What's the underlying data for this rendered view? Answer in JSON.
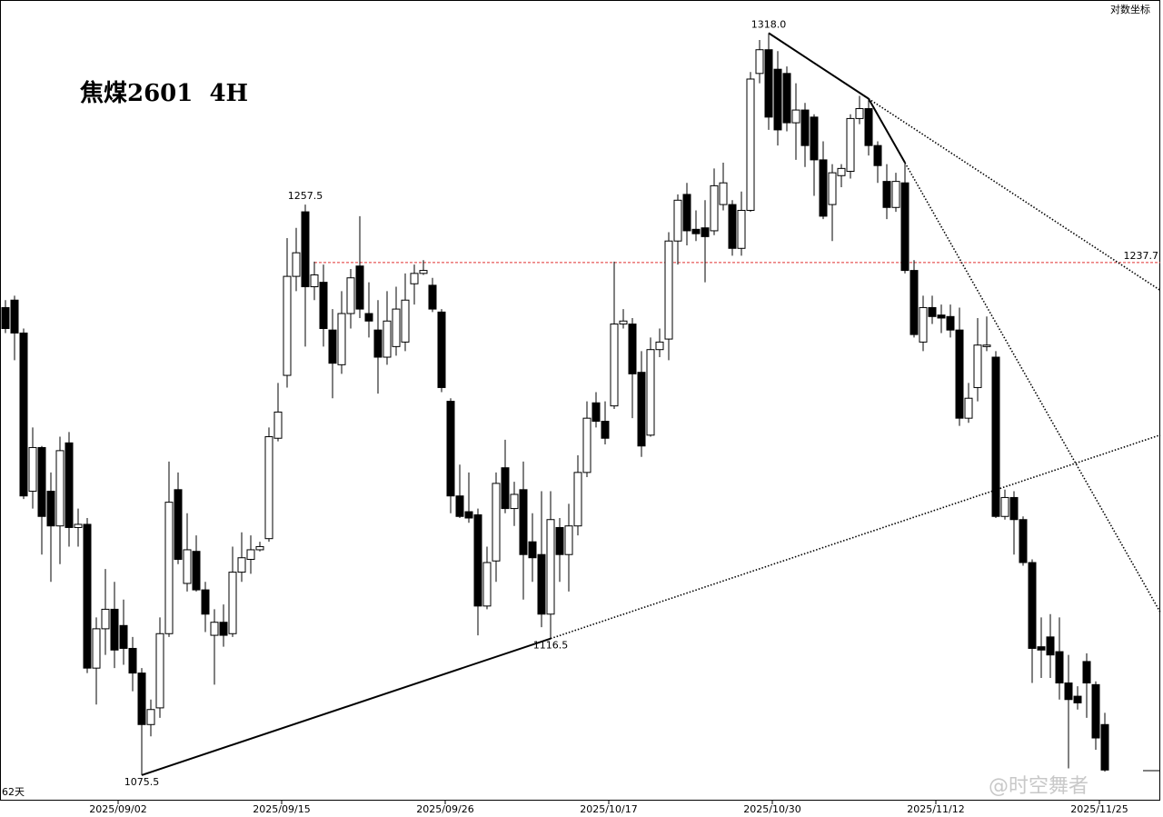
{
  "chart_data": {
    "type": "candlestick",
    "title": "焦煤2601  4H",
    "scale_label": "对数坐标",
    "footer_left": "62天",
    "watermark": "@时空舞者",
    "log_scale": true,
    "ylim": [
      1068,
      1330
    ],
    "up_color": "#ffffff",
    "down_color": "#000000",
    "categories": [
      null,
      null,
      null,
      null,
      null,
      null,
      null,
      null,
      null,
      null,
      null,
      null,
      "2025/09/02",
      null,
      null,
      null,
      null,
      null,
      null,
      null,
      null,
      null,
      null,
      null,
      null,
      null,
      null,
      null,
      null,
      null,
      "2025/09/15",
      null,
      null,
      null,
      null,
      null,
      null,
      null,
      null,
      null,
      null,
      null,
      null,
      null,
      null,
      null,
      null,
      null,
      "2025/09/26",
      null,
      null,
      null,
      null,
      null,
      null,
      null,
      null,
      null,
      null,
      null,
      null,
      null,
      null,
      null,
      null,
      null,
      "2025/10/17",
      null,
      null,
      null,
      null,
      null,
      null,
      null,
      null,
      null,
      null,
      null,
      null,
      null,
      null,
      null,
      null,
      null,
      "2025/10/30",
      null,
      null,
      null,
      null,
      null,
      null,
      null,
      null,
      null,
      null,
      null,
      null,
      null,
      null,
      null,
      null,
      null,
      "2025/11/12",
      null,
      null,
      null,
      null,
      null,
      null,
      null,
      null,
      null,
      null,
      null,
      null,
      null,
      null,
      null,
      null,
      null,
      "2025/11/25",
      null
    ],
    "open": [
      1222.5,
      1225,
      1214,
      1162.5,
      1176.5,
      1162.5,
      1151.5,
      1178,
      1151,
      1152,
      1107.5,
      1119.5,
      1125.5,
      1120.5,
      1113.5,
      1106,
      1090.5,
      1095.5,
      1118,
      1163,
      1133.5,
      1143.5,
      1131.5,
      1117.5,
      1121.5,
      1118,
      1137,
      1141,
      1144,
      1147.5,
      1179.5,
      1200,
      1233,
      1255,
      1229.5,
      1231,
      1215,
      1203.5,
      1220.5,
      1236.5,
      1220.5,
      1215,
      1206,
      1209.5,
      1211,
      1230.5,
      1234,
      1230,
      1221,
      1191.5,
      1161,
      1156,
      1155,
      1126.5,
      1140.5,
      1170,
      1157,
      1163,
      1146.5,
      1142.5,
      1124,
      1151,
      1142.5,
      1151.5,
      1168.5,
      1191,
      1185,
      1190,
      1217,
      1217,
      1201,
      1180.5,
      1208.5,
      1212,
      1245,
      1261,
      1249,
      1249.5,
      1248.5,
      1257.5,
      1257.5,
      1242.5,
      1255.5,
      1303.5,
      1312,
      1305,
      1303.5,
      1286,
      1290.5,
      1288,
      1273,
      1257.5,
      1267.5,
      1269,
      1287.5,
      1291,
      1278,
      1265.5,
      1256.5,
      1265,
      1235,
      1211,
      1222.5,
      1220,
      1219.5,
      1215,
      1186,
      1196,
      1209.5,
      1206,
      1154.5,
      1160.5,
      1153.5,
      1140,
      1114,
      1117,
      1112.5,
      1103,
      1099,
      1109.5,
      1102.5,
      1090.5
    ],
    "high": [
      1225,
      1226.5,
      1215.5,
      1183,
      1177,
      1168.5,
      1180,
      1181.5,
      1157,
      1154,
      1123,
      1138,
      1134,
      1128.5,
      1117,
      1107.5,
      1098,
      1123,
      1172,
      1168.5,
      1155.5,
      1148.5,
      1134,
      1125.5,
      1127,
      1145,
      1149.5,
      1148.5,
      1146.5,
      1183,
      1197.5,
      1246,
      1249.5,
      1257.5,
      1238,
      1237,
      1222,
      1228,
      1235.5,
      1253.5,
      1231,
      1225,
      1228,
      1229.5,
      1234,
      1237,
      1238.5,
      1232.5,
      1222,
      1192.5,
      1171,
      1168.5,
      1157,
      1145,
      1168.5,
      1179,
      1165.5,
      1172,
      1155.5,
      1162.5,
      1162.5,
      1154,
      1158.5,
      1174,
      1191.5,
      1194.5,
      1191.5,
      1238,
      1222,
      1219,
      1208,
      1212.5,
      1215.5,
      1248,
      1261,
      1265,
      1255.5,
      1259,
      1270,
      1272,
      1259,
      1262,
      1304,
      1315.5,
      1318.0,
      1311.5,
      1306,
      1300,
      1293,
      1289,
      1279.5,
      1271.5,
      1271.5,
      1289,
      1295.5,
      1294.5,
      1279.5,
      1271.5,
      1268.5,
      1272,
      1238.5,
      1226.5,
      1226.5,
      1223.5,
      1223.5,
      1222.5,
      1197.5,
      1219,
      1219.5,
      1208,
      1163,
      1162.5,
      1154.5,
      1141,
      1123,
      1124,
      1123,
      1111.5,
      1102,
      1112,
      1103.5,
      1094
    ],
    "low": [
      1214,
      1205,
      1160,
      1157,
      1142.5,
      1134,
      1139.5,
      1145,
      1145,
      1106,
      1096.5,
      1111.5,
      1107.5,
      1108.5,
      1100.5,
      1075.5,
      1087,
      1092.5,
      1117,
      1139.5,
      1131,
      1131,
      1118.5,
      1102.5,
      1114,
      1117,
      1134,
      1136.5,
      1143.5,
      1146.5,
      1178.5,
      1196,
      1228,
      1209.5,
      1225,
      1209.5,
      1192.5,
      1200.5,
      1215.5,
      1219,
      1212.5,
      1194,
      1203.5,
      1206.5,
      1208,
      1223.5,
      1233.5,
      1221,
      1194.5,
      1155.5,
      1154,
      1152.5,
      1117.5,
      1125.5,
      1134,
      1155.5,
      1151.5,
      1128.5,
      1134,
      1120,
      1116.5,
      1134,
      1131,
      1148.5,
      1167,
      1183,
      1177.5,
      1189,
      1215.5,
      1186,
      1173.5,
      1180,
      1206,
      1205,
      1237,
      1243.5,
      1245,
      1231,
      1247,
      1255.5,
      1240,
      1240,
      1255,
      1300,
      1283.5,
      1278,
      1283,
      1273,
      1270.5,
      1260.5,
      1252.5,
      1245,
      1263.5,
      1266.5,
      1285.5,
      1274.5,
      1265,
      1252.5,
      1255,
      1234,
      1212.5,
      1208,
      1217,
      1214,
      1212.5,
      1183.5,
      1184.5,
      1191.5,
      1208,
      1154,
      1153.5,
      1142.5,
      1139,
      1103,
      1104.5,
      1104.5,
      1098,
      1077.5,
      1095,
      1092.5,
      1083,
      1076.5
    ],
    "close": [
      1215.5,
      1214,
      1161,
      1176.5,
      1154.5,
      1151.5,
      1175.5,
      1151,
      1152,
      1107.5,
      1119.5,
      1125.5,
      1113,
      1113.5,
      1106,
      1090.5,
      1095,
      1118,
      1159,
      1141,
      1144,
      1131.5,
      1124,
      1121.5,
      1117.5,
      1137,
      1141.5,
      1144,
      1145,
      1180,
      1188,
      1233,
      1241,
      1229.5,
      1233.5,
      1215.5,
      1204,
      1220.5,
      1232.5,
      1222,
      1218,
      1206,
      1218,
      1222,
      1225,
      1234,
      1235,
      1222,
      1196,
      1161,
      1154.5,
      1154,
      1126.5,
      1140,
      1165,
      1157,
      1161.5,
      1142.5,
      1141.5,
      1124,
      1153.5,
      1142.5,
      1151.5,
      1168.5,
      1186,
      1185,
      1179.5,
      1217,
      1218,
      1200.5,
      1177,
      1208.5,
      1211,
      1245,
      1259,
      1248.5,
      1247.5,
      1246.5,
      1264,
      1265,
      1242.5,
      1255.5,
      1301.5,
      1312,
      1288,
      1283.5,
      1286,
      1290.5,
      1278,
      1273,
      1253.5,
      1268.5,
      1270,
      1287.5,
      1291,
      1278,
      1271,
      1256.5,
      1265.5,
      1235,
      1213.5,
      1222.5,
      1219.5,
      1219,
      1215,
      1186,
      1192.5,
      1210,
      1210,
      1154.5,
      1160.5,
      1153.5,
      1140,
      1113.5,
      1113,
      1111.5,
      1103,
      1098,
      1097,
      1103,
      1086.5,
      1077
    ],
    "annotations": [
      {
        "value": 1318.0,
        "label": "1318.0"
      },
      {
        "value": 1257.5,
        "label": "1257.5"
      },
      {
        "value": 1116.5,
        "label": "1116.5"
      },
      {
        "value": 1075.5,
        "label": "1075.5"
      }
    ],
    "hline": {
      "value": 1237.7,
      "label": "1237.7",
      "color": "#e03030"
    }
  }
}
